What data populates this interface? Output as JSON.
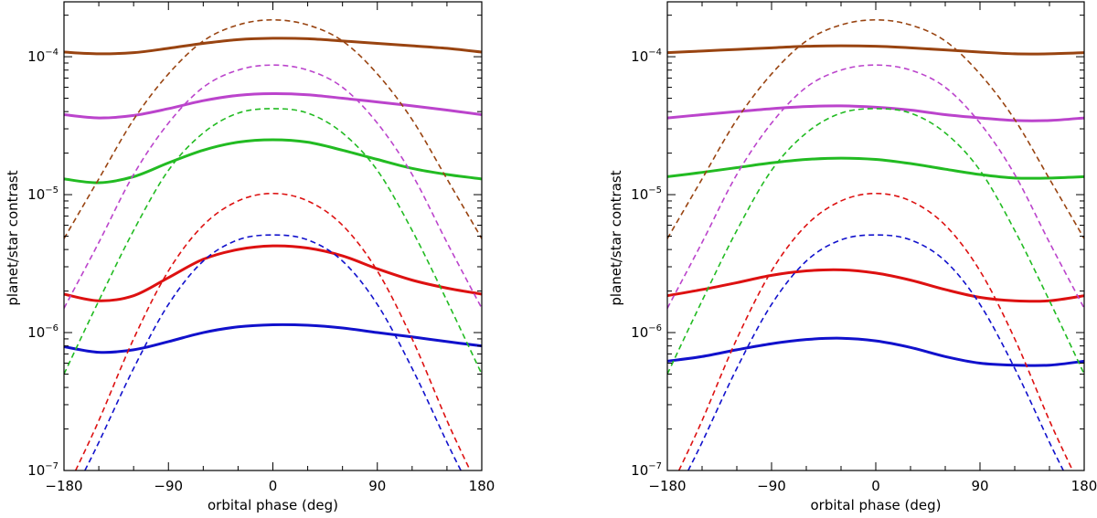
{
  "chart_data": [
    {
      "type": "line",
      "name": "left-panel",
      "xlabel": "orbital phase (deg)",
      "ylabel": "planet/star contrast",
      "xlim": [
        -180,
        180
      ],
      "ylim": [
        1e-07,
        0.00025
      ],
      "yscale": "log",
      "xticks": [
        {
          "value": -180,
          "label": "−180"
        },
        {
          "value": -90,
          "label": "−90"
        },
        {
          "value": 0,
          "label": "0"
        },
        {
          "value": 90,
          "label": "90"
        },
        {
          "value": 180,
          "label": "180"
        }
      ],
      "yticks": [
        {
          "value": 1e-07,
          "base": "10",
          "exp": "−7"
        },
        {
          "value": 1e-06,
          "base": "10",
          "exp": "−6"
        },
        {
          "value": 1e-05,
          "base": "10",
          "exp": "−5"
        },
        {
          "value": 0.0001,
          "base": "10",
          "exp": "−4"
        }
      ],
      "series": [
        {
          "name": "brown-solid",
          "color": "#994411",
          "style": "solid",
          "x": [
            -180,
            -150,
            -120,
            -90,
            -60,
            -30,
            0,
            30,
            60,
            90,
            120,
            150,
            180
          ],
          "y": [
            0.000108,
            0.000105,
            0.000107,
            0.000115,
            0.000125,
            0.000133,
            0.000136,
            0.000135,
            0.00013,
            0.000125,
            0.00012,
            0.000115,
            0.000108
          ]
        },
        {
          "name": "magenta-solid",
          "color": "#bb44cc",
          "style": "solid",
          "x": [
            -180,
            -150,
            -120,
            -90,
            -60,
            -30,
            0,
            30,
            60,
            90,
            120,
            150,
            180
          ],
          "y": [
            3.8e-05,
            3.6e-05,
            3.75e-05,
            4.2e-05,
            4.8e-05,
            5.25e-05,
            5.4e-05,
            5.3e-05,
            5e-05,
            4.7e-05,
            4.4e-05,
            4.1e-05,
            3.8e-05
          ]
        },
        {
          "name": "green-solid",
          "color": "#22bb22",
          "style": "solid",
          "x": [
            -180,
            -150,
            -120,
            -90,
            -60,
            -30,
            0,
            30,
            60,
            90,
            120,
            150,
            180
          ],
          "y": [
            1.3e-05,
            1.22e-05,
            1.35e-05,
            1.7e-05,
            2.1e-05,
            2.4e-05,
            2.5e-05,
            2.4e-05,
            2.1e-05,
            1.8e-05,
            1.55e-05,
            1.4e-05,
            1.3e-05
          ]
        },
        {
          "name": "red-solid",
          "color": "#dd1111",
          "style": "solid",
          "x": [
            -180,
            -150,
            -120,
            -90,
            -60,
            -30,
            0,
            30,
            60,
            90,
            120,
            150,
            180
          ],
          "y": [
            1.9e-06,
            1.7e-06,
            1.85e-06,
            2.5e-06,
            3.4e-06,
            4e-06,
            4.25e-06,
            4.1e-06,
            3.6e-06,
            2.9e-06,
            2.4e-06,
            2.1e-06,
            1.9e-06
          ]
        },
        {
          "name": "blue-solid",
          "color": "#1111cc",
          "style": "solid",
          "x": [
            -180,
            -150,
            -120,
            -90,
            -60,
            -30,
            0,
            30,
            60,
            90,
            120,
            150,
            180
          ],
          "y": [
            7.9e-07,
            7.2e-07,
            7.5e-07,
            8.6e-07,
            1e-06,
            1.1e-06,
            1.14e-06,
            1.13e-06,
            1.08e-06,
            1e-06,
            9.3e-07,
            8.6e-07,
            8e-07
          ]
        },
        {
          "name": "brown-dashed",
          "color": "#994411",
          "style": "dashed",
          "x": [
            -180,
            -150,
            -120,
            -90,
            -60,
            -30,
            0,
            30,
            60,
            90,
            120,
            150,
            180
          ],
          "y": [
            4.8e-06,
            1.3e-05,
            3.5e-05,
            7.5e-05,
            0.00013,
            0.00017,
            0.000185,
            0.00017,
            0.00013,
            7.5e-05,
            3.5e-05,
            1.3e-05,
            4.8e-06
          ]
        },
        {
          "name": "magenta-dashed",
          "color": "#bb44cc",
          "style": "dashed",
          "x": [
            -180,
            -150,
            -120,
            -90,
            -60,
            -30,
            0,
            30,
            60,
            90,
            120,
            150,
            180
          ],
          "y": [
            1.5e-06,
            4.5e-06,
            1.4e-05,
            3.3e-05,
            6e-05,
            8e-05,
            8.7e-05,
            8e-05,
            6e-05,
            3.3e-05,
            1.4e-05,
            4.5e-06,
            1.5e-06
          ]
        },
        {
          "name": "green-dashed",
          "color": "#22bb22",
          "style": "dashed",
          "x": [
            -180,
            -150,
            -120,
            -90,
            -60,
            -30,
            0,
            30,
            60,
            90,
            120,
            150,
            180
          ],
          "y": [
            5e-07,
            1.7e-06,
            5.5e-06,
            1.5e-05,
            2.8e-05,
            3.9e-05,
            4.2e-05,
            3.9e-05,
            2.8e-05,
            1.5e-05,
            5.5e-06,
            1.7e-06,
            5e-07
          ]
        },
        {
          "name": "red-dashed",
          "color": "#dd1111",
          "style": "dashed",
          "x": [
            -170,
            -150,
            -120,
            -90,
            -60,
            -30,
            0,
            30,
            60,
            90,
            120,
            150,
            170
          ],
          "y": [
            1e-07,
            2.3e-07,
            9e-07,
            2.8e-06,
            6e-06,
            9e-06,
            1.02e-05,
            9e-06,
            6e-06,
            2.8e-06,
            9e-07,
            2.3e-07,
            1e-07
          ]
        },
        {
          "name": "blue-dashed",
          "color": "#1111cc",
          "style": "dashed",
          "x": [
            -162,
            -150,
            -120,
            -90,
            -60,
            -30,
            0,
            30,
            60,
            90,
            120,
            150,
            162
          ],
          "y": [
            1e-07,
            1.6e-07,
            5.5e-07,
            1.6e-06,
            3.3e-06,
            4.7e-06,
            5.1e-06,
            4.7e-06,
            3.3e-06,
            1.6e-06,
            5.5e-07,
            1.6e-07,
            1e-07
          ]
        }
      ]
    },
    {
      "type": "line",
      "name": "right-panel",
      "xlabel": "orbital phase (deg)",
      "ylabel": "planet/star contrast",
      "xlim": [
        -180,
        180
      ],
      "ylim": [
        1e-07,
        0.00025
      ],
      "yscale": "log",
      "xticks": [
        {
          "value": -180,
          "label": "−180"
        },
        {
          "value": -90,
          "label": "−90"
        },
        {
          "value": 0,
          "label": "0"
        },
        {
          "value": 90,
          "label": "90"
        },
        {
          "value": 180,
          "label": "180"
        }
      ],
      "yticks": [
        {
          "value": 1e-07,
          "base": "10",
          "exp": "−7"
        },
        {
          "value": 1e-06,
          "base": "10",
          "exp": "−6"
        },
        {
          "value": 1e-05,
          "base": "10",
          "exp": "−5"
        },
        {
          "value": 0.0001,
          "base": "10",
          "exp": "−4"
        }
      ],
      "series": [
        {
          "name": "brown-solid",
          "color": "#994411",
          "style": "solid",
          "x": [
            -180,
            -150,
            -120,
            -90,
            -60,
            -30,
            0,
            30,
            60,
            90,
            120,
            150,
            180
          ],
          "y": [
            0.000107,
            0.00011,
            0.000113,
            0.000116,
            0.000119,
            0.00012,
            0.000119,
            0.000116,
            0.000112,
            0.000108,
            0.000105,
            0.000105,
            0.000107
          ]
        },
        {
          "name": "magenta-solid",
          "color": "#bb44cc",
          "style": "solid",
          "x": [
            -180,
            -150,
            -120,
            -90,
            -60,
            -30,
            0,
            30,
            60,
            90,
            120,
            150,
            180
          ],
          "y": [
            3.6e-05,
            3.8e-05,
            4e-05,
            4.2e-05,
            4.35e-05,
            4.4e-05,
            4.3e-05,
            4.1e-05,
            3.8e-05,
            3.6e-05,
            3.45e-05,
            3.45e-05,
            3.6e-05
          ]
        },
        {
          "name": "green-solid",
          "color": "#22bb22",
          "style": "solid",
          "x": [
            -180,
            -150,
            -120,
            -90,
            -60,
            -30,
            0,
            30,
            60,
            90,
            120,
            150,
            180
          ],
          "y": [
            1.35e-05,
            1.45e-05,
            1.57e-05,
            1.7e-05,
            1.8e-05,
            1.84e-05,
            1.8e-05,
            1.68e-05,
            1.53e-05,
            1.4e-05,
            1.32e-05,
            1.32e-05,
            1.35e-05
          ]
        },
        {
          "name": "red-solid",
          "color": "#dd1111",
          "style": "solid",
          "x": [
            -180,
            -150,
            -120,
            -90,
            -60,
            -30,
            0,
            30,
            60,
            90,
            120,
            150,
            180
          ],
          "y": [
            1.85e-06,
            2.05e-06,
            2.3e-06,
            2.6e-06,
            2.8e-06,
            2.85e-06,
            2.7e-06,
            2.4e-06,
            2.05e-06,
            1.8e-06,
            1.7e-06,
            1.7e-06,
            1.85e-06
          ]
        },
        {
          "name": "blue-solid",
          "color": "#1111cc",
          "style": "solid",
          "x": [
            -180,
            -150,
            -120,
            -90,
            -60,
            -30,
            0,
            30,
            60,
            90,
            120,
            150,
            180
          ],
          "y": [
            6.2e-07,
            6.7e-07,
            7.5e-07,
            8.3e-07,
            8.9e-07,
            9.1e-07,
            8.7e-07,
            7.8e-07,
            6.7e-07,
            6e-07,
            5.8e-07,
            5.8e-07,
            6.2e-07
          ]
        },
        {
          "name": "brown-dashed",
          "color": "#994411",
          "style": "dashed",
          "x": [
            -180,
            -150,
            -120,
            -90,
            -60,
            -30,
            0,
            30,
            60,
            90,
            120,
            150,
            180
          ],
          "y": [
            4.8e-06,
            1.3e-05,
            3.5e-05,
            7.5e-05,
            0.00013,
            0.00017,
            0.000185,
            0.00017,
            0.00013,
            7.5e-05,
            3.5e-05,
            1.3e-05,
            4.8e-06
          ]
        },
        {
          "name": "magenta-dashed",
          "color": "#bb44cc",
          "style": "dashed",
          "x": [
            -180,
            -150,
            -120,
            -90,
            -60,
            -30,
            0,
            30,
            60,
            90,
            120,
            150,
            180
          ],
          "y": [
            1.5e-06,
            4.5e-06,
            1.4e-05,
            3.3e-05,
            6e-05,
            8e-05,
            8.7e-05,
            8e-05,
            6e-05,
            3.3e-05,
            1.4e-05,
            4.5e-06,
            1.5e-06
          ]
        },
        {
          "name": "green-dashed",
          "color": "#22bb22",
          "style": "dashed",
          "x": [
            -180,
            -150,
            -120,
            -90,
            -60,
            -30,
            0,
            30,
            60,
            90,
            120,
            150,
            180
          ],
          "y": [
            5e-07,
            1.7e-06,
            5.5e-06,
            1.5e-05,
            2.8e-05,
            3.9e-05,
            4.2e-05,
            3.9e-05,
            2.8e-05,
            1.5e-05,
            5.5e-06,
            1.7e-06,
            5e-07
          ]
        },
        {
          "name": "red-dashed",
          "color": "#dd1111",
          "style": "dashed",
          "x": [
            -170,
            -150,
            -120,
            -90,
            -60,
            -30,
            0,
            30,
            60,
            90,
            120,
            150,
            170
          ],
          "y": [
            1e-07,
            2.3e-07,
            9e-07,
            2.8e-06,
            6e-06,
            9e-06,
            1.02e-05,
            9e-06,
            6e-06,
            2.8e-06,
            9e-07,
            2.3e-07,
            1e-07
          ]
        },
        {
          "name": "blue-dashed",
          "color": "#1111cc",
          "style": "dashed",
          "x": [
            -162,
            -150,
            -120,
            -90,
            -60,
            -30,
            0,
            30,
            60,
            90,
            120,
            150,
            162
          ],
          "y": [
            1e-07,
            1.6e-07,
            5.5e-07,
            1.6e-06,
            3.3e-06,
            4.7e-06,
            5.1e-06,
            4.7e-06,
            3.3e-06,
            1.6e-06,
            5.5e-07,
            1.6e-07,
            1e-07
          ]
        }
      ]
    }
  ]
}
